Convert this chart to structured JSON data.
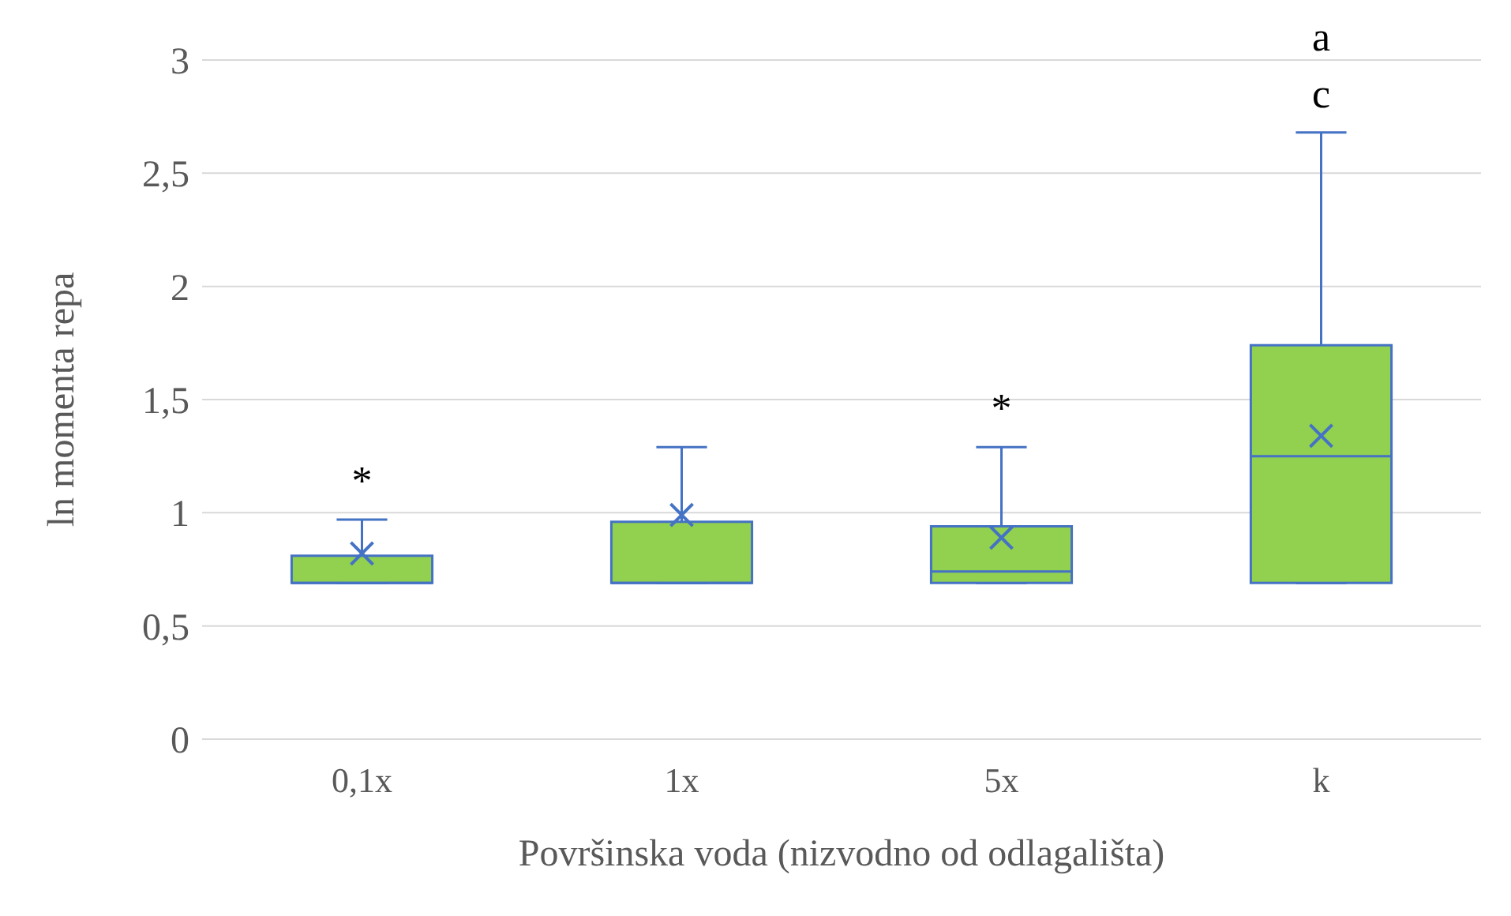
{
  "chart_data": {
    "type": "box",
    "xlabel": "Površinska voda (nizvodno od odlagališta)",
    "ylabel": "ln momenta repa",
    "categories": [
      "0,1x",
      "1x",
      "5x",
      "k"
    ],
    "color": "#92d050",
    "boxes": [
      {
        "low": 0.69,
        "q1": 0.69,
        "median": 0.69,
        "q3": 0.81,
        "high": 0.97,
        "mean": 0.82
      },
      {
        "low": 0.69,
        "q1": 0.69,
        "median": 0.69,
        "q3": 0.96,
        "high": 1.29,
        "mean": 0.99
      },
      {
        "low": 0.69,
        "q1": 0.69,
        "median": 0.74,
        "q3": 0.94,
        "high": 1.29,
        "mean": 0.89
      },
      {
        "low": 0.69,
        "q1": 0.69,
        "median": 1.25,
        "q3": 1.74,
        "high": 2.68,
        "mean": 1.34
      }
    ],
    "ylim": [
      0,
      3
    ],
    "yticks": [
      0,
      {
        "value": 0.5,
        "label": "0,5"
      },
      1,
      {
        "value": 1.5,
        "label": "1,5"
      },
      2,
      {
        "value": 2.5,
        "label": "2,5"
      },
      3
    ],
    "grid": "y",
    "annotations": [
      "*",
      "*",
      "a",
      "c"
    ]
  }
}
